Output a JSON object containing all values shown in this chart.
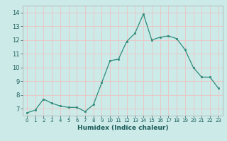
{
  "x": [
    0,
    1,
    2,
    3,
    4,
    5,
    6,
    7,
    8,
    9,
    10,
    11,
    12,
    13,
    14,
    15,
    16,
    17,
    18,
    19,
    20,
    21,
    22,
    23
  ],
  "y": [
    6.7,
    6.9,
    7.7,
    7.4,
    7.2,
    7.1,
    7.1,
    6.8,
    7.3,
    8.9,
    10.5,
    10.6,
    11.9,
    12.5,
    13.9,
    12.0,
    12.2,
    12.3,
    12.1,
    11.3,
    10.0,
    9.3,
    9.3,
    8.5
  ],
  "xlabel": "Humidex (Indice chaleur)",
  "ylim": [
    6.5,
    14.5
  ],
  "xlim": [
    -0.5,
    23.5
  ],
  "yticks": [
    7,
    8,
    9,
    10,
    11,
    12,
    13,
    14
  ],
  "xticks": [
    0,
    1,
    2,
    3,
    4,
    5,
    6,
    7,
    8,
    9,
    10,
    11,
    12,
    13,
    14,
    15,
    16,
    17,
    18,
    19,
    20,
    21,
    22,
    23
  ],
  "xtick_labels": [
    "0",
    "1",
    "2",
    "3",
    "4",
    "5",
    "6",
    "7",
    "8",
    "9",
    "10",
    "11",
    "12",
    "13",
    "14",
    "15",
    "16",
    "17",
    "18",
    "19",
    "20",
    "21",
    "22",
    "23"
  ],
  "line_color": "#2d8b7a",
  "marker_color": "#2d8b7a",
  "bg_color": "#cceae8",
  "grid_color": "#e8c8c8",
  "plot_bg": "#cceae8"
}
